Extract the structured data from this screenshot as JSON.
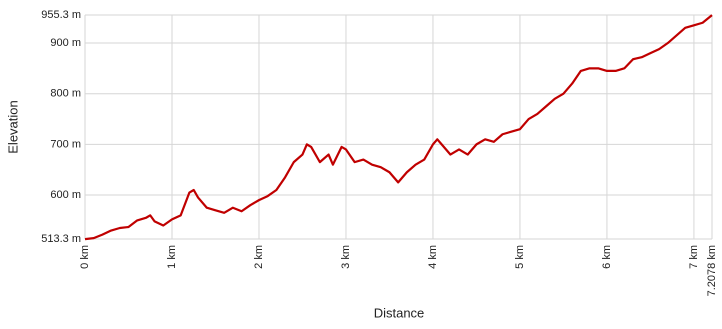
{
  "chart_data": {
    "type": "line",
    "xlabel": "Distance",
    "ylabel": "Elevation",
    "xlim": [
      0,
      7.2078
    ],
    "ylim": [
      513.3,
      955.3
    ],
    "xticks": [
      {
        "value": 0,
        "label": "0 km"
      },
      {
        "value": 1,
        "label": "1 km"
      },
      {
        "value": 2,
        "label": "2 km"
      },
      {
        "value": 3,
        "label": "3 km"
      },
      {
        "value": 4,
        "label": "4 km"
      },
      {
        "value": 5,
        "label": "5 km"
      },
      {
        "value": 6,
        "label": "6 km"
      },
      {
        "value": 7,
        "label": "7 km"
      },
      {
        "value": 7.2078,
        "label": "7.2078 km"
      }
    ],
    "yticks": [
      {
        "value": 513.3,
        "label": "513.3 m"
      },
      {
        "value": 600,
        "label": "600 m"
      },
      {
        "value": 700,
        "label": "700 m"
      },
      {
        "value": 800,
        "label": "800 m"
      },
      {
        "value": 900,
        "label": "900 m"
      },
      {
        "value": 955.3,
        "label": "955.3 m"
      }
    ],
    "grid": true,
    "color": "#c00000",
    "x": [
      0,
      0.1,
      0.2,
      0.3,
      0.4,
      0.5,
      0.6,
      0.7,
      0.75,
      0.8,
      0.9,
      1.0,
      1.1,
      1.2,
      1.25,
      1.3,
      1.4,
      1.5,
      1.6,
      1.7,
      1.8,
      1.9,
      2.0,
      2.1,
      2.2,
      2.3,
      2.4,
      2.5,
      2.55,
      2.6,
      2.7,
      2.8,
      2.85,
      2.95,
      3.0,
      3.1,
      3.2,
      3.3,
      3.4,
      3.5,
      3.6,
      3.7,
      3.8,
      3.9,
      4.0,
      4.05,
      4.1,
      4.2,
      4.3,
      4.4,
      4.5,
      4.6,
      4.7,
      4.8,
      4.9,
      5.0,
      5.1,
      5.2,
      5.3,
      5.4,
      5.5,
      5.6,
      5.7,
      5.8,
      5.9,
      6.0,
      6.1,
      6.2,
      6.3,
      6.4,
      6.5,
      6.6,
      6.7,
      6.8,
      6.9,
      7.0,
      7.1,
      7.2078
    ],
    "values": [
      513,
      515,
      522,
      530,
      535,
      537,
      550,
      555,
      560,
      548,
      540,
      552,
      560,
      605,
      610,
      595,
      575,
      570,
      565,
      575,
      568,
      580,
      590,
      598,
      610,
      635,
      665,
      680,
      700,
      695,
      665,
      680,
      660,
      695,
      690,
      665,
      670,
      660,
      655,
      645,
      625,
      645,
      660,
      670,
      700,
      710,
      700,
      680,
      690,
      680,
      700,
      710,
      705,
      720,
      725,
      730,
      750,
      760,
      775,
      790,
      800,
      820,
      845,
      850,
      850,
      845,
      845,
      850,
      868,
      872,
      880,
      888,
      900,
      915,
      930,
      935,
      940,
      955
    ]
  }
}
